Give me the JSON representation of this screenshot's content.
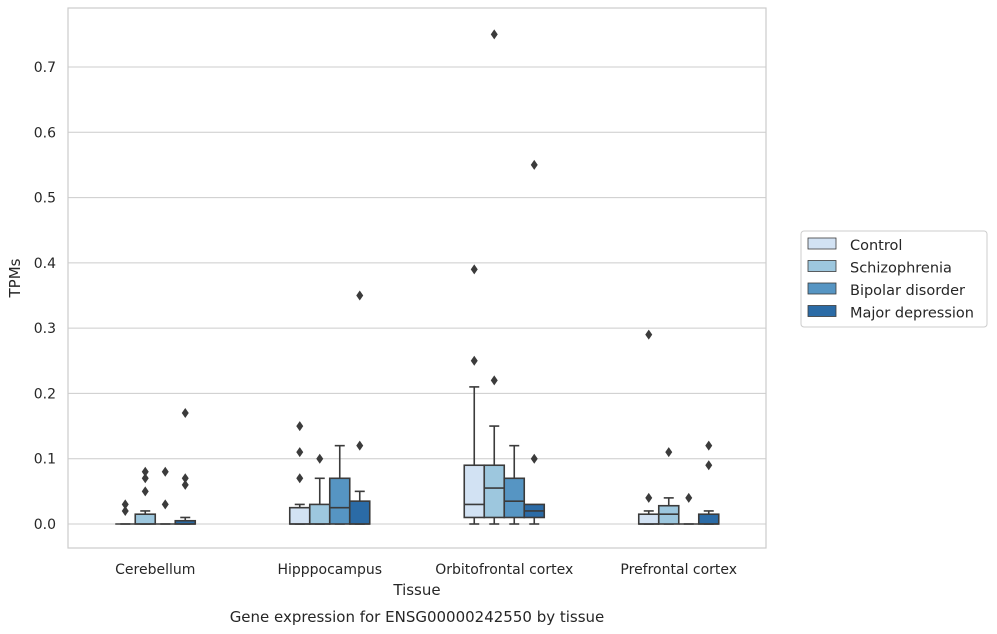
{
  "chart_data": {
    "type": "box",
    "title": "",
    "caption": "Gene expression for ENSG00000242550 by tissue",
    "xlabel": "Tissue",
    "ylabel": "TPMs",
    "ylim": [
      -0.036,
      0.792
    ],
    "yticks": [
      0.0,
      0.1,
      0.2,
      0.3,
      0.4,
      0.5,
      0.6,
      0.7
    ],
    "ytick_labels": [
      "0.0",
      "0.1",
      "0.2",
      "0.3",
      "0.4",
      "0.5",
      "0.6",
      "0.7"
    ],
    "grid": "horizontal",
    "legend_position": "right",
    "categories": [
      "Cerebellum",
      "Hipppocampus",
      "Orbitofrontal cortex",
      "Prefrontal cortex"
    ],
    "series": [
      {
        "name": "Control",
        "color": "#d2e2f3",
        "boxes": [
          {
            "min": 0.0,
            "q1": 0.0,
            "median": 0.0,
            "q3": 0.0,
            "max": 0.0,
            "outliers": [
              0.03,
              0.02
            ]
          },
          {
            "min": 0.0,
            "q1": 0.0,
            "median": 0.0,
            "q3": 0.025,
            "max": 0.03,
            "outliers": [
              0.15,
              0.11,
              0.07
            ]
          },
          {
            "min": 0.0,
            "q1": 0.01,
            "median": 0.03,
            "q3": 0.09,
            "max": 0.21,
            "outliers": [
              0.39,
              0.25
            ]
          },
          {
            "min": 0.0,
            "q1": 0.0,
            "median": 0.0,
            "q3": 0.015,
            "max": 0.02,
            "outliers": [
              0.29,
              0.04
            ]
          }
        ]
      },
      {
        "name": "Schizophrenia",
        "color": "#9dc7de",
        "boxes": [
          {
            "min": 0.0,
            "q1": 0.0,
            "median": 0.0,
            "q3": 0.015,
            "max": 0.02,
            "outliers": [
              0.08,
              0.07,
              0.05
            ]
          },
          {
            "min": 0.0,
            "q1": 0.0,
            "median": 0.0,
            "q3": 0.03,
            "max": 0.07,
            "outliers": [
              0.1
            ]
          },
          {
            "min": 0.0,
            "q1": 0.01,
            "median": 0.055,
            "q3": 0.09,
            "max": 0.15,
            "outliers": [
              0.75,
              0.22
            ]
          },
          {
            "min": 0.0,
            "q1": 0.0,
            "median": 0.015,
            "q3": 0.028,
            "max": 0.04,
            "outliers": [
              0.11
            ]
          }
        ]
      },
      {
        "name": "Bipolar disorder",
        "color": "#5695c3",
        "boxes": [
          {
            "min": 0.0,
            "q1": 0.0,
            "median": 0.0,
            "q3": 0.0,
            "max": 0.0,
            "outliers": [
              0.08,
              0.03
            ]
          },
          {
            "min": 0.0,
            "q1": 0.0,
            "median": 0.025,
            "q3": 0.07,
            "max": 0.12,
            "outliers": []
          },
          {
            "min": 0.0,
            "q1": 0.01,
            "median": 0.035,
            "q3": 0.07,
            "max": 0.12,
            "outliers": []
          },
          {
            "min": 0.0,
            "q1": 0.0,
            "median": 0.0,
            "q3": 0.0,
            "max": 0.0,
            "outliers": [
              0.04
            ]
          }
        ]
      },
      {
        "name": "Major depression",
        "color": "#2b6ba6",
        "boxes": [
          {
            "min": 0.0,
            "q1": 0.0,
            "median": 0.0,
            "q3": 0.005,
            "max": 0.01,
            "outliers": [
              0.17,
              0.07,
              0.06
            ]
          },
          {
            "min": 0.0,
            "q1": 0.0,
            "median": 0.0,
            "q3": 0.035,
            "max": 0.05,
            "outliers": [
              0.35,
              0.12
            ]
          },
          {
            "min": 0.0,
            "q1": 0.01,
            "median": 0.02,
            "q3": 0.03,
            "max": 0.03,
            "outliers": [
              0.55,
              0.1
            ]
          },
          {
            "min": 0.0,
            "q1": 0.0,
            "median": 0.0,
            "q3": 0.015,
            "max": 0.02,
            "outliers": [
              0.12,
              0.09
            ]
          }
        ]
      }
    ]
  }
}
